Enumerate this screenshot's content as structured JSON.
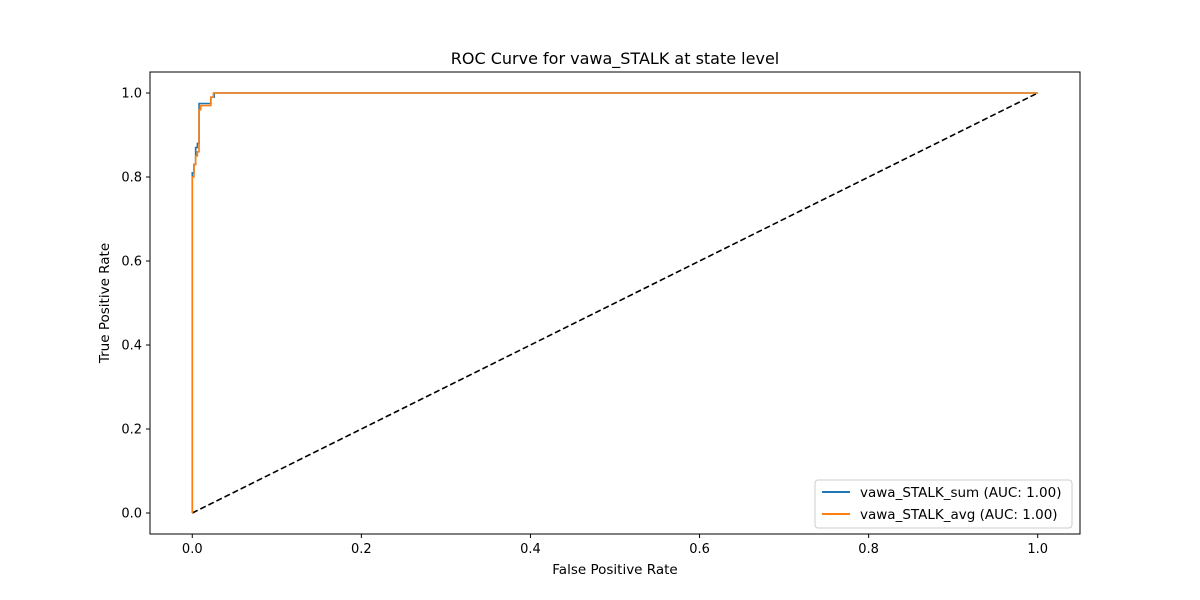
{
  "chart_data": {
    "type": "line",
    "title": "ROC Curve for vawa_STALK at state level",
    "xlabel": "False Positive Rate",
    "ylabel": "True Positive Rate",
    "xlim": [
      -0.05,
      1.05
    ],
    "ylim": [
      -0.05,
      1.05
    ],
    "x_ticks": [
      "0.0",
      "0.2",
      "0.4",
      "0.6",
      "0.8",
      "1.0"
    ],
    "y_ticks": [
      "0.0",
      "0.2",
      "0.4",
      "0.6",
      "0.8",
      "1.0"
    ],
    "grid": false,
    "legend_position": "lower-right",
    "series": [
      {
        "name": "vawa_STALK_sum (AUC: 1.00)",
        "color": "#1f77b4",
        "x": [
          0.0,
          0.0,
          0.002,
          0.002,
          0.004,
          0.004,
          0.006,
          0.006,
          0.008,
          0.008,
          0.022,
          0.022,
          0.026,
          0.026,
          1.0
        ],
        "y": [
          0.0,
          0.81,
          0.81,
          0.83,
          0.83,
          0.87,
          0.87,
          0.88,
          0.88,
          0.975,
          0.975,
          0.99,
          0.99,
          1.0,
          1.0
        ]
      },
      {
        "name": "vawa_STALK_avg (AUC: 1.00)",
        "color": "#ff7f0e",
        "x": [
          0.0,
          0.0,
          0.002,
          0.002,
          0.004,
          0.004,
          0.006,
          0.006,
          0.008,
          0.008,
          0.01,
          0.01,
          0.022,
          0.022,
          0.025,
          0.025,
          1.0
        ],
        "y": [
          0.0,
          0.8,
          0.8,
          0.83,
          0.83,
          0.85,
          0.85,
          0.86,
          0.86,
          0.96,
          0.96,
          0.97,
          0.97,
          0.99,
          0.99,
          1.0,
          1.0
        ]
      },
      {
        "name": "",
        "color": "#000000",
        "dashed": true,
        "x": [
          0.0,
          1.0
        ],
        "y": [
          0.0,
          1.0
        ]
      }
    ]
  }
}
